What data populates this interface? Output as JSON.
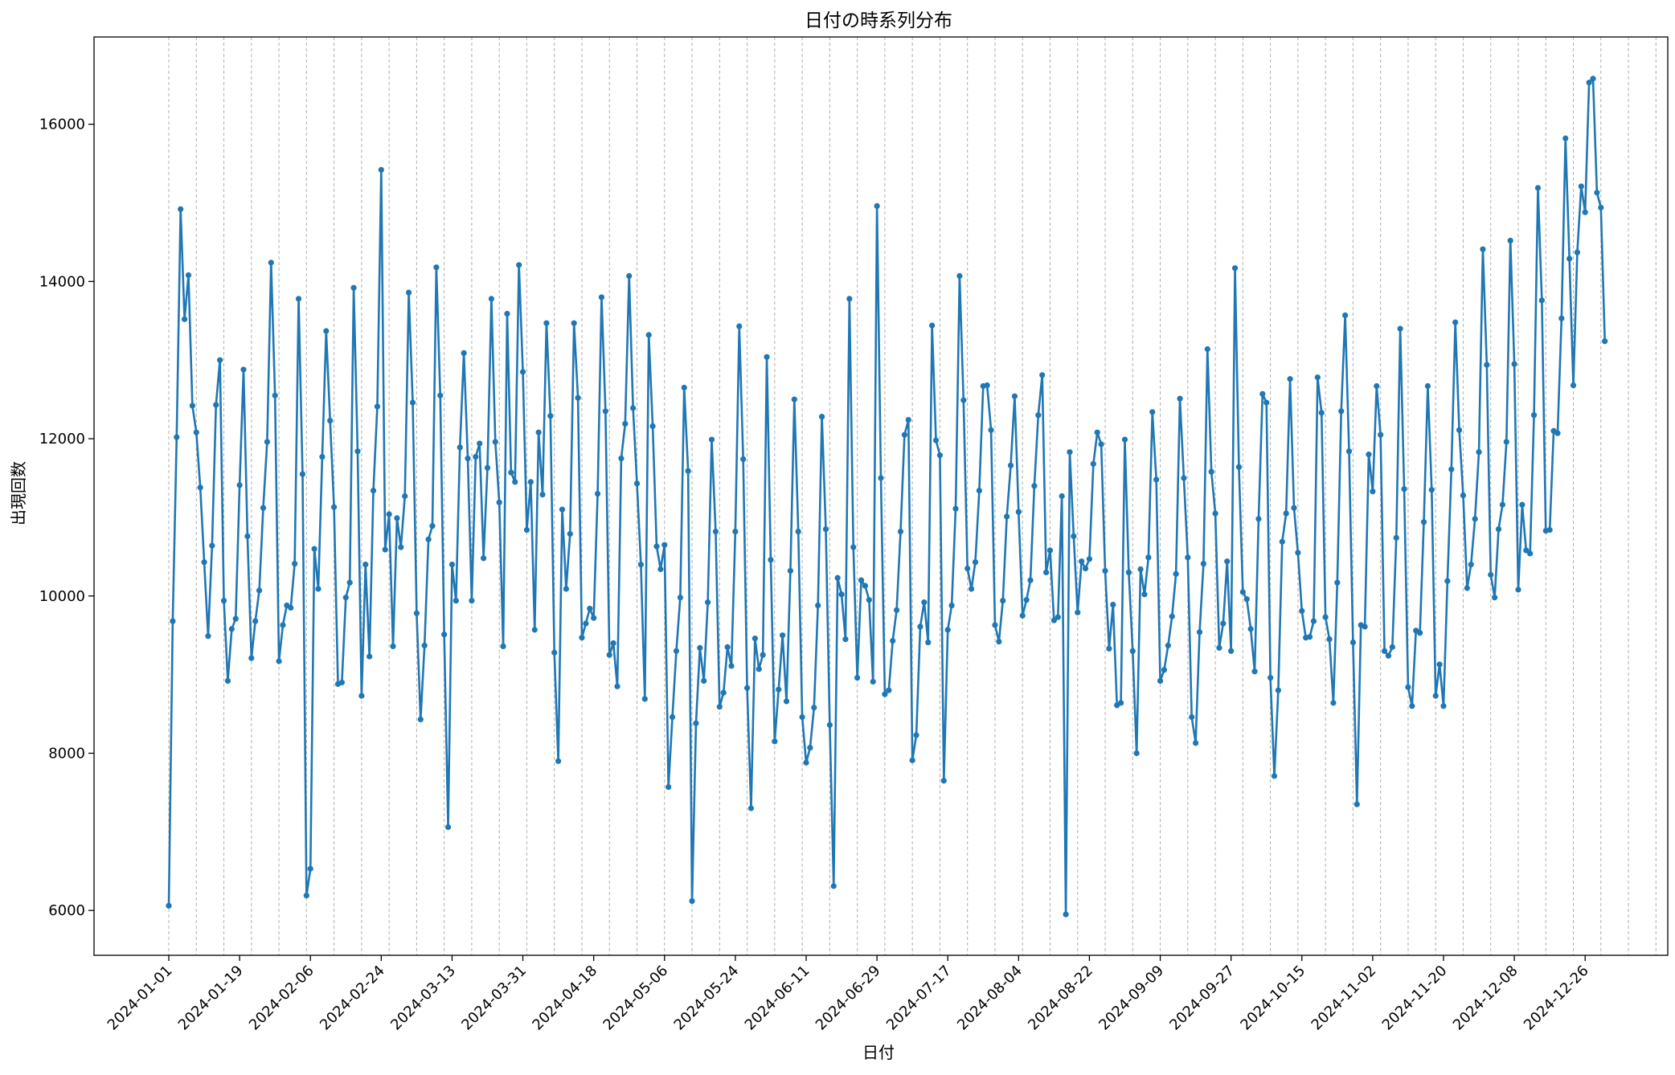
{
  "chart_data": {
    "type": "line",
    "title": "日付の時系列分布",
    "xlabel": "日付",
    "ylabel": "出現回数",
    "x_ticks": [
      "2024-01-01",
      "2024-01-19",
      "2024-02-06",
      "2024-02-24",
      "2024-03-13",
      "2024-03-31",
      "2024-04-18",
      "2024-05-06",
      "2024-05-24",
      "2024-06-11",
      "2024-06-29",
      "2024-07-17",
      "2024-08-04",
      "2024-08-22",
      "2024-09-09",
      "2024-09-27",
      "2024-10-15",
      "2024-11-02",
      "2024-11-20",
      "2024-12-08",
      "2024-12-26"
    ],
    "y_ticks": [
      6000,
      8000,
      10000,
      12000,
      14000,
      16000
    ],
    "ylim": [
      5430,
      17110
    ],
    "xlim": [
      "2023-12-13",
      "2025-01-16"
    ],
    "grid": "x-dashed",
    "x_start": "2024-01-01",
    "x_end": "2025-01-05",
    "color": "#1f77b4",
    "series": [
      {
        "values": [
          6060,
          9680,
          12020,
          14920,
          13520,
          14080,
          12420,
          12080,
          11380,
          10430,
          9490,
          10640,
          12430,
          13000,
          9940,
          8920,
          9580,
          9710,
          11410,
          12880,
          10760,
          9210,
          9680,
          10070,
          11120,
          11960,
          14240,
          12550,
          9170,
          9630,
          9880,
          9850,
          10410,
          13780,
          11550,
          6190,
          6530,
          10600,
          10090,
          11770,
          13370,
          12230,
          11130,
          8880,
          8900,
          9980,
          10170,
          13920,
          11840,
          8730,
          10400,
          9230,
          11340,
          12410,
          15420,
          10590,
          11040,
          9360,
          10990,
          10620,
          11270,
          13860,
          12460,
          9780,
          8430,
          9370,
          10720,
          10890,
          14180,
          12550,
          9510,
          7060,
          10400,
          9940,
          11890,
          13090,
          11750,
          9940,
          11770,
          11940,
          10480,
          11630,
          13780,
          11960,
          11190,
          9360,
          13590,
          11570,
          11450,
          14210,
          12850,
          10840,
          11450,
          9570,
          12080,
          11290,
          13470,
          12290,
          9280,
          7900,
          11100,
          10090,
          10790,
          13470,
          12520,
          9470,
          9650,
          9840,
          9720,
          11300,
          13800,
          12350,
          9250,
          9400,
          8850,
          11750,
          12190,
          14070,
          12390,
          11430,
          10400,
          8690,
          13320,
          12160,
          10630,
          10340,
          10650,
          7570,
          8460,
          9300,
          9980,
          12650,
          11590,
          6120,
          8380,
          9340,
          8920,
          9920,
          11990,
          10820,
          8590,
          8770,
          9350,
          9110,
          10820,
          13430,
          11740,
          8830,
          7300,
          9460,
          9070,
          9250,
          13040,
          10460,
          8150,
          8810,
          9500,
          8660,
          10320,
          12500,
          10820,
          8460,
          7880,
          8070,
          8580,
          9880,
          12280,
          10850,
          8360,
          6310,
          10230,
          10020,
          9450,
          13780,
          10620,
          8960,
          10200,
          10130,
          9950,
          8910,
          14960,
          11500,
          8750,
          8800,
          9430,
          9820,
          10820,
          12050,
          12240,
          7910,
          8230,
          9610,
          9920,
          9410,
          13440,
          11980,
          11790,
          7650,
          9570,
          9880,
          11110,
          14070,
          12490,
          10350,
          10090,
          10430,
          11340,
          12670,
          12680,
          12110,
          9630,
          9420,
          9940,
          11010,
          11660,
          12540,
          11070,
          9750,
          9950,
          10200,
          11400,
          12300,
          12810,
          10300,
          10580,
          9690,
          9730,
          11270,
          5950,
          11830,
          10760,
          9790,
          10440,
          10350,
          10470,
          11680,
          12080,
          11930,
          10320,
          9330,
          9890,
          8610,
          8640,
          11990,
          10300,
          9300,
          8000,
          10340,
          10020,
          10490,
          12340,
          11480,
          8920,
          9060,
          9370,
          9740,
          10280,
          12510,
          11500,
          10490,
          8460,
          8130,
          9540,
          10410,
          13140,
          11580,
          11050,
          9340,
          9650,
          10440,
          9300,
          14170,
          11640,
          10050,
          9960,
          9580,
          9040,
          10980,
          12570,
          12460,
          8960,
          7710,
          8800,
          10690,
          11050,
          12760,
          11120,
          10550,
          9810,
          9470,
          9480,
          9680,
          12780,
          12330,
          9730,
          9450,
          8640,
          10170,
          12350,
          13570,
          11840,
          9410,
          7350,
          9630,
          9610,
          11800,
          11330,
          12670,
          12050,
          9300,
          9240,
          9350,
          10740,
          13400,
          11360,
          8840,
          8600,
          9560,
          9530,
          10940,
          12670,
          11350,
          8730,
          9130,
          8600,
          10190,
          11610,
          13480,
          12110,
          11280,
          10100,
          10400,
          10980,
          11830,
          14410,
          12940,
          10270,
          9980,
          10850,
          11160,
          11960,
          14520,
          12950,
          10080,
          11160,
          10580,
          10540,
          12300,
          15190,
          13760,
          10830,
          10840,
          12100,
          12070,
          13530,
          15820,
          14290,
          12680,
          14370,
          15210,
          14880,
          16530,
          16580,
          15130,
          14940,
          13240
        ]
      }
    ]
  }
}
